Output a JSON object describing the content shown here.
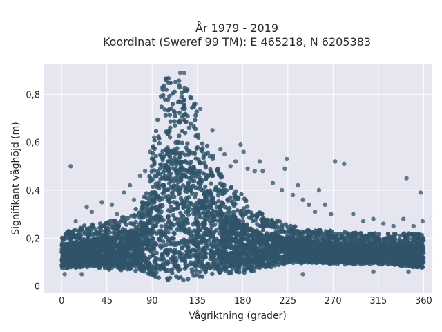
{
  "chart_data": {
    "type": "scatter",
    "title": "År 1979 - 2019",
    "subtitle": "Koordinat (Sweref 99 TM): E 465218, N 6205383",
    "xlabel": "Vågriktning (grader)",
    "ylabel": "Signifikant våghöjd (m)",
    "xlim": [
      -18,
      368
    ],
    "ylim": [
      -0.03,
      0.925
    ],
    "xticks": [
      0,
      45,
      90,
      135,
      180,
      225,
      270,
      315,
      360
    ],
    "yticks": [
      0,
      0.2,
      0.4,
      0.6,
      0.8
    ],
    "ytick_labels": [
      "0",
      "0,2",
      "0,4",
      "0,6",
      "0,8"
    ],
    "grid": true,
    "marker_color": "#2f5369",
    "envelope": {
      "x": [
        0,
        20,
        45,
        70,
        85,
        95,
        100,
        105,
        115,
        125,
        130,
        140,
        150,
        160,
        170,
        180,
        190,
        200,
        210,
        225,
        240,
        270,
        300,
        330,
        360
      ],
      "y_low": [
        0.07,
        0.08,
        0.07,
        0.06,
        0.04,
        0.02,
        0.02,
        0.02,
        0.02,
        0.02,
        0.03,
        0.04,
        0.05,
        0.05,
        0.05,
        0.05,
        0.06,
        0.07,
        0.08,
        0.09,
        0.09,
        0.09,
        0.09,
        0.09,
        0.07
      ],
      "y_high": [
        0.22,
        0.25,
        0.27,
        0.3,
        0.4,
        0.7,
        0.86,
        0.88,
        0.88,
        0.85,
        0.78,
        0.66,
        0.55,
        0.47,
        0.42,
        0.38,
        0.33,
        0.3,
        0.28,
        0.26,
        0.24,
        0.23,
        0.22,
        0.22,
        0.22
      ]
    },
    "outliers": [
      {
        "x": 9,
        "y": 0.5
      },
      {
        "x": 14,
        "y": 0.27
      },
      {
        "x": 25,
        "y": 0.33
      },
      {
        "x": 30,
        "y": 0.31
      },
      {
        "x": 40,
        "y": 0.35
      },
      {
        "x": 50,
        "y": 0.34
      },
      {
        "x": 55,
        "y": 0.3
      },
      {
        "x": 62,
        "y": 0.39
      },
      {
        "x": 68,
        "y": 0.42
      },
      {
        "x": 72,
        "y": 0.36
      },
      {
        "x": 78,
        "y": 0.46
      },
      {
        "x": 83,
        "y": 0.48
      },
      {
        "x": 88,
        "y": 0.56
      },
      {
        "x": 92,
        "y": 0.62
      },
      {
        "x": 118,
        "y": 0.89
      },
      {
        "x": 122,
        "y": 0.89
      },
      {
        "x": 128,
        "y": 0.79
      },
      {
        "x": 133,
        "y": 0.76
      },
      {
        "x": 138,
        "y": 0.74
      },
      {
        "x": 150,
        "y": 0.65
      },
      {
        "x": 158,
        "y": 0.57
      },
      {
        "x": 162,
        "y": 0.55
      },
      {
        "x": 168,
        "y": 0.5
      },
      {
        "x": 173,
        "y": 0.52
      },
      {
        "x": 178,
        "y": 0.59
      },
      {
        "x": 181,
        "y": 0.56
      },
      {
        "x": 185,
        "y": 0.49
      },
      {
        "x": 192,
        "y": 0.48
      },
      {
        "x": 197,
        "y": 0.52
      },
      {
        "x": 200,
        "y": 0.48
      },
      {
        "x": 210,
        "y": 0.43
      },
      {
        "x": 219,
        "y": 0.4
      },
      {
        "x": 222,
        "y": 0.49
      },
      {
        "x": 224,
        "y": 0.53
      },
      {
        "x": 230,
        "y": 0.38
      },
      {
        "x": 235,
        "y": 0.42
      },
      {
        "x": 240,
        "y": 0.36
      },
      {
        "x": 246,
        "y": 0.34
      },
      {
        "x": 252,
        "y": 0.31
      },
      {
        "x": 256,
        "y": 0.4
      },
      {
        "x": 262,
        "y": 0.34
      },
      {
        "x": 268,
        "y": 0.3
      },
      {
        "x": 272,
        "y": 0.52
      },
      {
        "x": 281,
        "y": 0.51
      },
      {
        "x": 290,
        "y": 0.3
      },
      {
        "x": 300,
        "y": 0.27
      },
      {
        "x": 310,
        "y": 0.28
      },
      {
        "x": 320,
        "y": 0.26
      },
      {
        "x": 330,
        "y": 0.25
      },
      {
        "x": 340,
        "y": 0.28
      },
      {
        "x": 343,
        "y": 0.45
      },
      {
        "x": 350,
        "y": 0.25
      },
      {
        "x": 357,
        "y": 0.39
      },
      {
        "x": 359,
        "y": 0.27
      },
      {
        "x": 3,
        "y": 0.05
      },
      {
        "x": 20,
        "y": 0.05
      },
      {
        "x": 240,
        "y": 0.05
      },
      {
        "x": 310,
        "y": 0.06
      },
      {
        "x": 345,
        "y": 0.06
      }
    ]
  }
}
